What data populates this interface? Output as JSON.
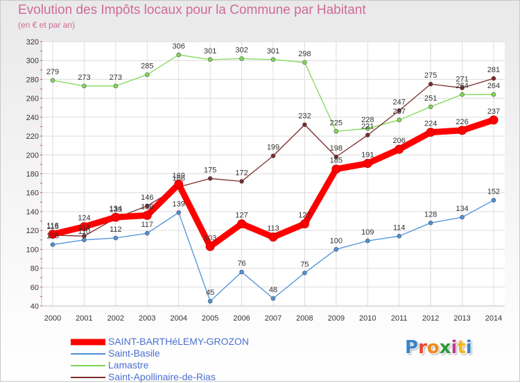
{
  "header": {
    "title": "Evolution des Impôts locaux pour la Commune par Habitant",
    "subtitle": "(en € et par an)"
  },
  "logo": {
    "letters": [
      "P",
      "r",
      "o",
      "x",
      "i",
      "t",
      "i"
    ],
    "colors": [
      "#3b82c8",
      "#e8452d",
      "#f08a1e",
      "#2b9a3b",
      "#c23b8a",
      "#f0b51e",
      "#3b82c8"
    ]
  },
  "chart_data": {
    "type": "line",
    "title": "Evolution des Impôts locaux pour la Commune par Habitant",
    "subtitle": "(en € et par an)",
    "xlabel": "",
    "ylabel": "",
    "x": [
      "2000",
      "2001",
      "2002",
      "2003",
      "2004",
      "2005",
      "2006",
      "2007",
      "2008",
      "2009",
      "2010",
      "2011",
      "2012",
      "2013",
      "2014"
    ],
    "ylim": [
      40,
      320
    ],
    "yticks": [
      40,
      60,
      80,
      100,
      120,
      140,
      160,
      180,
      200,
      220,
      240,
      260,
      280,
      300,
      320
    ],
    "grid": true,
    "legend_position": "bottom-left",
    "series": [
      {
        "name": "SAINT-BARTHéLEMY-GROZON",
        "color": "#ff0000",
        "style": "bold",
        "values": [
          116,
          124,
          134,
          136,
          169,
          103,
          127,
          113,
          127,
          185,
          191,
          206,
          224,
          226,
          237
        ],
        "labels": [
          "116",
          "124",
          "134",
          "136",
          "169",
          "103",
          "127",
          "113",
          "127",
          "185",
          "191",
          "206",
          "224",
          "226",
          "237"
        ]
      },
      {
        "name": "Saint-Basile",
        "color": "#4a90d9",
        "style": "thin",
        "values": [
          105,
          110,
          112,
          117,
          139,
          45,
          76,
          48,
          75,
          100,
          109,
          114,
          128,
          134,
          152
        ],
        "labels": [
          "105",
          "110",
          "112",
          "117",
          "139",
          "45",
          "76",
          "48",
          "75",
          "100",
          "109",
          "114",
          "128",
          "134",
          "152"
        ]
      },
      {
        "name": "Lamastre",
        "color": "#7fd855",
        "style": "thin",
        "values": [
          279,
          273,
          273,
          285,
          306,
          301,
          302,
          301,
          298,
          225,
          228,
          237,
          251,
          264,
          264
        ],
        "labels": [
          "279",
          "273",
          "273",
          "285",
          "306",
          "301",
          "302",
          "301",
          "298",
          "225",
          "228",
          "237",
          "251",
          "264",
          "264"
        ]
      },
      {
        "name": "Saint-Apollinaire-de-Rias",
        "color": "#7a2a2a",
        "style": "thin",
        "values": [
          115,
          114,
          133,
          146,
          166,
          175,
          172,
          199,
          232,
          198,
          221,
          247,
          275,
          271,
          281
        ],
        "labels": [
          "115",
          "114",
          "133",
          "146",
          "166",
          "175",
          "172",
          "199",
          "232",
          "198",
          "221",
          "247",
          "275",
          "271",
          "281"
        ]
      }
    ]
  }
}
